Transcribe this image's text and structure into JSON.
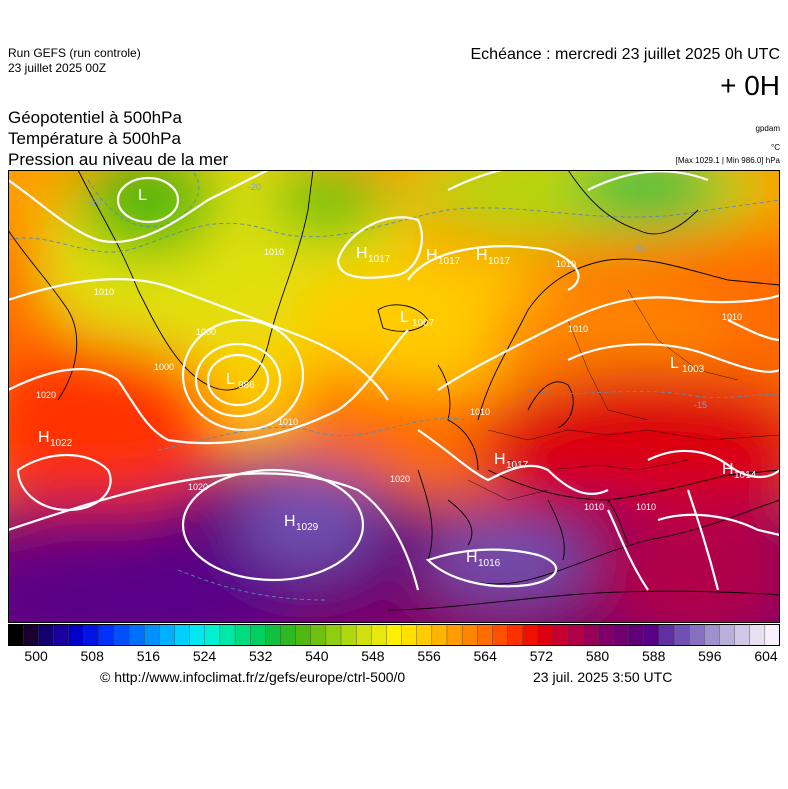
{
  "header": {
    "run_title": "Run GEFS (run controle)",
    "run_date": "23 juillet 2025 00Z",
    "echeance": "Echéance : mercredi 23 juillet 2025 0h UTC",
    "lead_time": "+ 0H",
    "fields": [
      "Géopotentiel à 500hPa",
      "Température à 500hPa",
      "Pression au niveau de la mer"
    ],
    "units": {
      "geopotential": "gpdam",
      "temperature": "°C",
      "pressure_range": "[Max 1029.1 | Min 986.0] hPa"
    }
  },
  "colorbar": {
    "min": 496,
    "max": 606,
    "step": 2,
    "tick_labels": [
      "500",
      "508",
      "516",
      "524",
      "532",
      "540",
      "548",
      "556",
      "564",
      "572",
      "580",
      "588",
      "596",
      "604"
    ],
    "colors": [
      "#000000",
      "#1a0030",
      "#120070",
      "#1a00a0",
      "#0000c8",
      "#0014e6",
      "#0030ff",
      "#0050ff",
      "#0070ff",
      "#0090ff",
      "#00b0ff",
      "#00d0ff",
      "#00e8f0",
      "#00f0d0",
      "#00e8a8",
      "#00dc80",
      "#00d060",
      "#10c040",
      "#30b820",
      "#50b810",
      "#70c010",
      "#90cc10",
      "#b0d810",
      "#d0e010",
      "#e8e810",
      "#fff000",
      "#ffe000",
      "#ffcc00",
      "#ffb400",
      "#ff9c00",
      "#ff8400",
      "#ff6c00",
      "#ff5000",
      "#ff3000",
      "#f01000",
      "#dc0010",
      "#c80030",
      "#b00048",
      "#980058",
      "#800068",
      "#700070",
      "#600078",
      "#580088",
      "#6030a0",
      "#7050b0",
      "#8870c0",
      "#a090cc",
      "#b8b0d8",
      "#d0c8e4",
      "#e8e0f0",
      "#f8f0fc"
    ]
  },
  "pressure_centers": [
    {
      "type": "L",
      "value": "",
      "color": "#ffffff"
    },
    {
      "type": "H",
      "value": "1017",
      "color": "#ffffff"
    },
    {
      "type": "H",
      "value": "1017",
      "color": "#ffffff"
    },
    {
      "type": "H",
      "value": "1017",
      "color": "#ffffff"
    },
    {
      "type": "L",
      "value": "1007",
      "color": "#ffffff"
    },
    {
      "type": "L",
      "value": "986",
      "color": "#ffffff"
    },
    {
      "type": "L",
      "value": "1003",
      "color": "#ffffff"
    },
    {
      "type": "H",
      "value": "1022",
      "color": "#ffffff"
    },
    {
      "type": "H",
      "value": "1017",
      "color": "#ffffff"
    },
    {
      "type": "H",
      "value": "1014",
      "color": "#ffffff"
    },
    {
      "type": "H",
      "value": "1029",
      "color": "#ffffff"
    },
    {
      "type": "H",
      "value": "1016",
      "color": "#ffffff"
    }
  ],
  "isobar_labels": [
    "1010",
    "1010",
    "1010",
    "1000",
    "1010",
    "1010",
    "1010",
    "1020",
    "1020",
    "1020",
    "1010",
    "1010",
    "1010",
    "1000"
  ],
  "temperature_labels": [
    "-20",
    "-20",
    "-20",
    "-15"
  ],
  "footer": {
    "url": "© http://www.infoclimat.fr/z/gefs/europe/ctrl-500/0",
    "generated": "23 juil. 2025  3:50 UTC"
  }
}
